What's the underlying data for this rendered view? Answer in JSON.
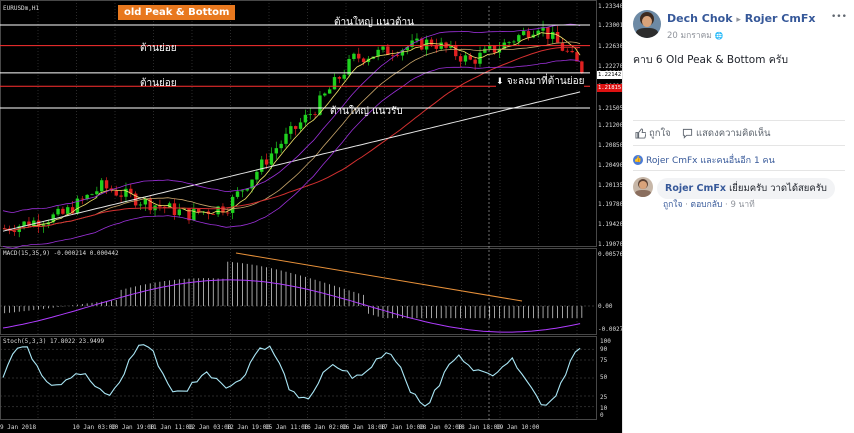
{
  "chart": {
    "symbol_label": "EURUSDm,H1",
    "macd_label": "MACD(15,35,9) -0.000214 0.000442",
    "stoch_label": "Stoch(5,3,3) 17.8022 23.9499",
    "annotations": {
      "badge": "old Peak & Bottom",
      "big_resistance": "ต้านใหญ่ แนวต้าน",
      "minor_resistance_1": "ต้านย่อย",
      "minor_resistance_2": "ต้านย่อย",
      "big_support": "ต้านใหญ่ แนวรับ",
      "pullback_note": "จะลงมาที่ต้านย่อย"
    },
    "price_axis": [
      "1.23340",
      "1.23001",
      "1.22630",
      "1.22270",
      "1.22142",
      "1.21910",
      "1.21505",
      "1.21200",
      "1.20850",
      "1.20490",
      "1.20135",
      "1.19780",
      "1.19420",
      "1.19070"
    ],
    "price_highlight": {
      "red": "1.21815",
      "white": "1.22142"
    },
    "macd_axis": [
      "0.00576",
      "0.00",
      "-0.00275"
    ],
    "stoch_axis": [
      "100",
      "90",
      "75",
      "50",
      "25",
      "10",
      "0"
    ],
    "time_axis": [
      "9 Jan 2018",
      "10 Jan 03:00",
      "10 Jan 19:00",
      "11 Jan 11:00",
      "12 Jan 03:00",
      "12 Jan 19:00",
      "15 Jan 11:00",
      "16 Jan 02:00",
      "16 Jan 18:00",
      "17 Jan 10:00",
      "18 Jan 02:00",
      "18 Jan 18:00",
      "19 Jan 10:00"
    ],
    "colors": {
      "background": "#000000",
      "bull": "#1fd21f",
      "bear": "#e02020",
      "level_line": "#ffffff",
      "resistance_line": "#ff3030",
      "macd_hist": "#e8e8e8",
      "macd_signal": "#b03cff",
      "trendline": "#e8913a",
      "stoch_main": "#a9e6f5"
    }
  },
  "post": {
    "author": "Dech Chok",
    "arrow": "▸",
    "group": "Rojer CmFx",
    "date": "20 มกราคม",
    "globe": "🌐",
    "more": "•••",
    "text": "คาบ 6 Old Peak & Bottom ครับ",
    "like_label": "ถูกใจ",
    "comment_label": "แสดงความคิดเห็น",
    "reactions": "Rojer CmFx และคนอื่นอีก 1 คน",
    "comment": {
      "author": "Rojer CmFx",
      "text": "เยี่ยมครับ วาดได้สยครับ",
      "like": "ถูกใจ",
      "reply": "ตอบกลับ",
      "time": "9 นาที",
      "sep": "·"
    }
  }
}
